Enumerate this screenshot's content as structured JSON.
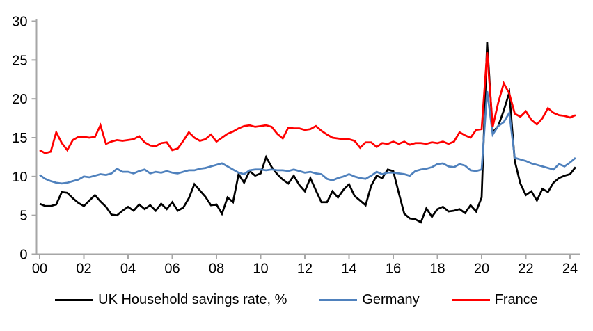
{
  "chart_data": {
    "type": "line",
    "title": "",
    "xlabel": "",
    "ylabel": "",
    "grid": false,
    "legend_position": "bottom",
    "axis_color": "#A6A6A6",
    "text_color": "#000000",
    "background_color": "#FFFFFF",
    "x_axis": {
      "tick_labels": [
        "00",
        "02",
        "04",
        "06",
        "08",
        "10",
        "12",
        "14",
        "16",
        "18",
        "20",
        "22",
        "24"
      ],
      "tick_values": [
        2000,
        2002,
        2004,
        2006,
        2008,
        2010,
        2012,
        2014,
        2016,
        2018,
        2020,
        2022,
        2024
      ],
      "range": [
        2000,
        2024.25
      ]
    },
    "y_axis": {
      "tick_values": [
        0,
        5,
        10,
        15,
        20,
        25,
        30
      ],
      "range": [
        0,
        30
      ]
    },
    "x": [
      2000,
      2000.25,
      2000.5,
      2000.75,
      2001,
      2001.25,
      2001.5,
      2001.75,
      2002,
      2002.25,
      2002.5,
      2002.75,
      2003,
      2003.25,
      2003.5,
      2003.75,
      2004,
      2004.25,
      2004.5,
      2004.75,
      2005,
      2005.25,
      2005.5,
      2005.75,
      2006,
      2006.25,
      2006.5,
      2006.75,
      2007,
      2007.25,
      2007.5,
      2007.75,
      2008,
      2008.25,
      2008.5,
      2008.75,
      2009,
      2009.25,
      2009.5,
      2009.75,
      2010,
      2010.25,
      2010.5,
      2010.75,
      2011,
      2011.25,
      2011.5,
      2011.75,
      2012,
      2012.25,
      2012.5,
      2012.75,
      2013,
      2013.25,
      2013.5,
      2013.75,
      2014,
      2014.25,
      2014.5,
      2014.75,
      2015,
      2015.25,
      2015.5,
      2015.75,
      2016,
      2016.25,
      2016.5,
      2016.75,
      2017,
      2017.25,
      2017.5,
      2017.75,
      2018,
      2018.25,
      2018.5,
      2018.75,
      2019,
      2019.25,
      2019.5,
      2019.75,
      2020,
      2020.25,
      2020.5,
      2020.75,
      2021,
      2021.25,
      2021.5,
      2021.75,
      2022,
      2022.25,
      2022.5,
      2022.75,
      2023,
      2023.25,
      2023.5,
      2023.75,
      2024,
      2024.25
    ],
    "series": [
      {
        "id": "uk",
        "name": "UK Household savings rate, %",
        "color": "#000000",
        "values": [
          6.5,
          6.2,
          6.2,
          6.4,
          8.0,
          7.9,
          7.2,
          6.6,
          6.2,
          6.9,
          7.6,
          6.8,
          6.1,
          5.1,
          5.0,
          5.6,
          6.1,
          5.6,
          6.4,
          5.8,
          6.3,
          5.6,
          6.5,
          5.8,
          6.7,
          5.6,
          6.0,
          7.2,
          9.0,
          8.2,
          7.4,
          6.3,
          6.4,
          5.2,
          7.3,
          6.7,
          10.3,
          9.2,
          10.7,
          10.1,
          10.4,
          12.5,
          11.2,
          10.3,
          9.6,
          9.1,
          10.1,
          8.9,
          8.1,
          9.8,
          8.2,
          6.7,
          6.7,
          8.1,
          7.3,
          8.3,
          9.0,
          7.5,
          6.9,
          6.3,
          8.8,
          10.1,
          9.8,
          10.9,
          10.7,
          7.9,
          5.2,
          4.6,
          4.5,
          4.1,
          5.9,
          4.8,
          5.8,
          6.1,
          5.5,
          5.6,
          5.8,
          5.3,
          6.3,
          5.5,
          7.3,
          27.3,
          15.7,
          16.5,
          18.5,
          20.8,
          12.0,
          9.1,
          7.6,
          8.1,
          6.9,
          8.4,
          8.0,
          9.2,
          9.8,
          10.1,
          10.3,
          11.2
        ]
      },
      {
        "id": "germany",
        "name": "Germany",
        "color": "#4F81BD",
        "values": [
          10.2,
          9.7,
          9.4,
          9.2,
          9.1,
          9.2,
          9.4,
          9.6,
          10.0,
          9.9,
          10.1,
          10.3,
          10.2,
          10.4,
          11.0,
          10.6,
          10.6,
          10.4,
          10.7,
          10.9,
          10.4,
          10.6,
          10.5,
          10.7,
          10.5,
          10.4,
          10.6,
          10.8,
          10.8,
          11.0,
          11.1,
          11.3,
          11.5,
          11.7,
          11.3,
          10.9,
          10.5,
          10.3,
          10.8,
          10.9,
          10.9,
          10.8,
          10.9,
          10.8,
          10.8,
          10.7,
          10.9,
          10.7,
          10.5,
          10.6,
          10.4,
          10.3,
          9.7,
          9.5,
          9.8,
          10.0,
          10.3,
          10.0,
          9.8,
          9.7,
          10.1,
          10.6,
          10.3,
          10.5,
          10.5,
          10.4,
          10.3,
          10.1,
          10.7,
          10.9,
          11.0,
          11.2,
          11.6,
          11.7,
          11.3,
          11.2,
          11.6,
          11.4,
          10.8,
          10.7,
          10.9,
          21.0,
          15.4,
          16.5,
          17.0,
          18.2,
          12.4,
          12.2,
          12.0,
          11.7,
          11.5,
          11.3,
          11.1,
          10.9,
          11.6,
          11.3,
          11.8,
          12.4
        ]
      },
      {
        "id": "france",
        "name": "France",
        "color": "#FF0000",
        "values": [
          13.4,
          13.0,
          13.2,
          15.7,
          14.3,
          13.4,
          14.7,
          15.1,
          15.1,
          15.0,
          15.1,
          16.6,
          14.2,
          14.5,
          14.7,
          14.6,
          14.7,
          14.8,
          15.2,
          14.4,
          14.0,
          13.9,
          14.3,
          14.4,
          13.4,
          13.6,
          14.6,
          15.7,
          15.0,
          14.6,
          14.8,
          15.4,
          14.5,
          15.0,
          15.5,
          15.8,
          16.2,
          16.5,
          16.6,
          16.4,
          16.5,
          16.6,
          16.4,
          15.5,
          14.9,
          16.3,
          16.2,
          16.2,
          16.0,
          16.1,
          16.5,
          15.9,
          15.4,
          15.0,
          14.9,
          14.8,
          14.8,
          14.6,
          13.7,
          14.4,
          14.4,
          13.8,
          14.3,
          14.2,
          14.5,
          14.2,
          14.5,
          14.1,
          14.3,
          14.3,
          14.2,
          14.4,
          14.3,
          14.5,
          14.2,
          14.5,
          15.7,
          15.3,
          15.0,
          16.0,
          16.1,
          26.0,
          16.4,
          19.5,
          22.0,
          20.7,
          18.1,
          17.7,
          18.4,
          17.3,
          16.7,
          17.5,
          18.8,
          18.2,
          17.9,
          17.8,
          17.6,
          17.9
        ]
      }
    ]
  }
}
